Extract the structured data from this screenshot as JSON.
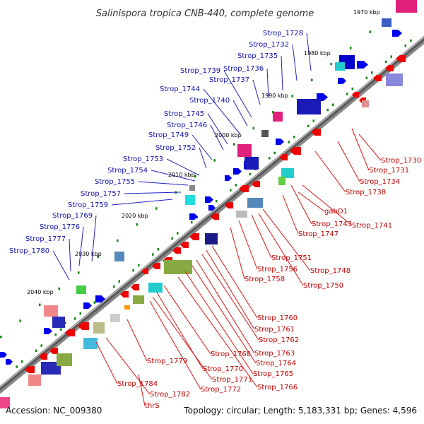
{
  "map": {
    "title": "Salinispora tropica CNB-440, complete genome",
    "accession": "Accession: NC_009380",
    "summary": "Topology: circular; Length: 5,183,331 bp; Genes: 4,596"
  },
  "kbp_labels": [
    "1970 kbp",
    "1980 kbp",
    "1990 kbp",
    "2000 kbp",
    "2010 kbp",
    "2020 kbp",
    "2030 kbp",
    "2040 kbp"
  ],
  "upper_labels": [
    "Strop_1728",
    "Strop_1732",
    "Strop_1735",
    "Strop_1736",
    "Strop_1737",
    "Strop_1739",
    "Strop_1740",
    "Strop_1744",
    "Strop_1745",
    "Strop_1746",
    "Strop_1749",
    "Strop_1752",
    "Strop_1753",
    "Strop_1754",
    "Strop_1755",
    "Strop_1757",
    "Strop_1759",
    "Strop_1769",
    "Strop_1776",
    "Strop_1777",
    "Strop_1780"
  ],
  "lower_labels": [
    "Strop_1730",
    "Strop_1731",
    "Strop_1734",
    "Strop_1738",
    "Strop_1741",
    "Strop_1743",
    "gabD1",
    "Strop_1747",
    "Strop_1748",
    "Strop_1750",
    "Strop_1751",
    "Strop_1756",
    "Strop_1758",
    "Strop_1760",
    "Strop_1761",
    "Strop_1762",
    "Strop_1763",
    "Strop_1764",
    "Strop_1765",
    "Strop_1766",
    "Strop_1768",
    "Strop_1770",
    "Strop_1771",
    "Strop_1772",
    "Strop_1779",
    "Strop_1782",
    "Strop_1784",
    "thrS"
  ],
  "colors": {
    "upper_label": "#1010b0",
    "lower_label": "#c00000",
    "upper_leader": "#2020c8",
    "lower_leader": "#e01010",
    "forward_gene": "#0000ee",
    "reverse_gene": "#ee0000",
    "tick_dot": "#118811"
  }
}
